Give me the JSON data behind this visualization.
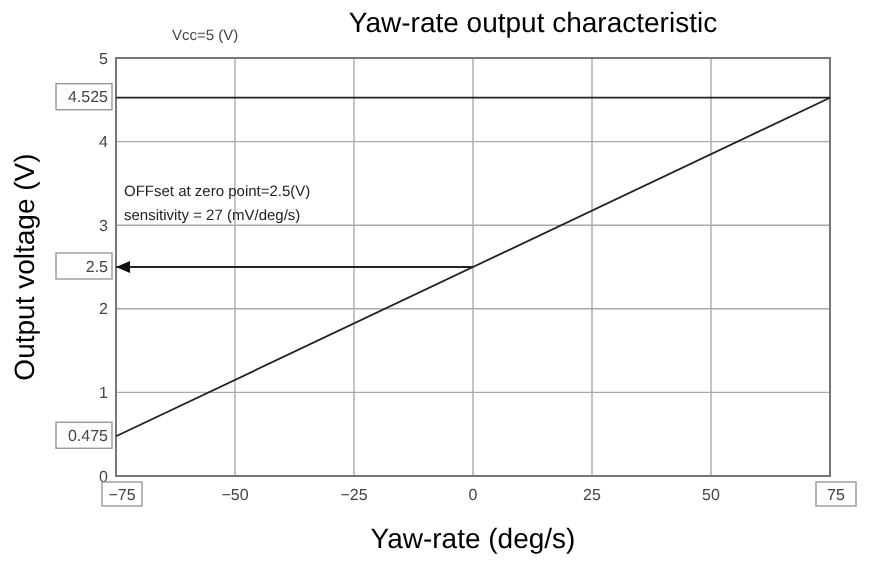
{
  "chart_data": {
    "type": "line",
    "title": "Yaw-rate output characteristic",
    "xlabel": "Yaw-rate (deg/s)",
    "ylabel": "Output voltage (V)",
    "annotations": [
      "Vcc=5 (V)",
      "OFFset at zero point=2.5(V)",
      "sensitivity = 27 (mV/deg/s)"
    ],
    "series": [
      {
        "x": [
          -75,
          75
        ],
        "values": [
          0.475,
          4.525
        ],
        "color": "#222222"
      },
      {
        "x": [
          -75,
          0
        ],
        "values": [
          2.5,
          2.5
        ],
        "color": "#222222"
      }
    ],
    "xlim": [
      -75,
      75
    ],
    "ylim": [
      0,
      5
    ],
    "xticks": [
      {
        "value": -75,
        "label": "−75"
      },
      {
        "value": -50,
        "label": "−50"
      },
      {
        "value": -25,
        "label": "−25"
      },
      0,
      25,
      50,
      {
        "value": 75,
        "label": "75"
      }
    ],
    "yticks": [
      0,
      {
        "value": 0.475,
        "label": "0.475"
      },
      1,
      2,
      {
        "value": 2.5,
        "label": "2.5"
      },
      3,
      4,
      {
        "value": 4.525,
        "label": "4.525"
      },
      5
    ],
    "ref_lines": [
      {
        "axis": "y",
        "value": 4.525,
        "color": "#222222"
      }
    ],
    "grid": true,
    "marker": "none",
    "line_style": "solid"
  }
}
